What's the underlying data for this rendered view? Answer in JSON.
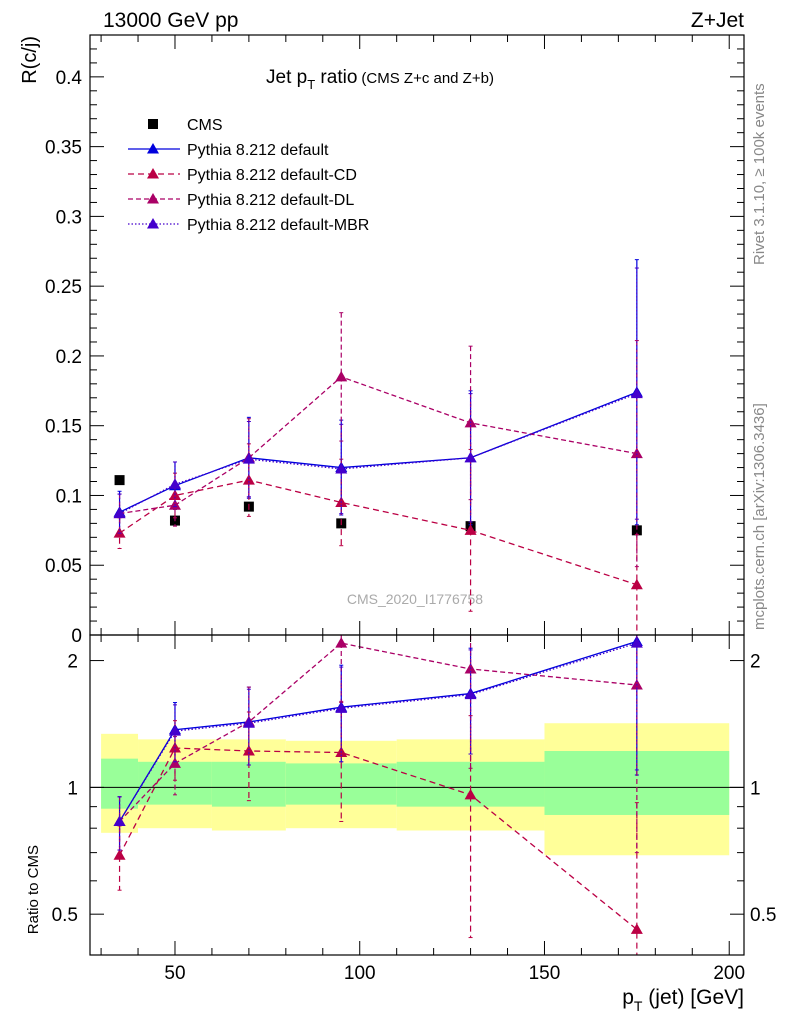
{
  "header": {
    "left": "13000 GeV pp",
    "right": "Z+Jet"
  },
  "side_labels": {
    "top": "Rivet 3.1.10, ≥ 100k events",
    "bottom": "mcplots.cern.ch [arXiv:1306.3436]"
  },
  "chart_data": {
    "type": "scatter",
    "title_main": "Jet p",
    "title_sub": "T",
    "title_rest": " ratio",
    "title_small": "(CMS  Z+c and Z+b)",
    "ylabel": "R(c/j)",
    "xlabel_main": "p",
    "xlabel_sub": "T",
    "xlabel_rest": " (jet) [GeV]",
    "ratio_ylabel": "Ratio to CMS",
    "watermark": "CMS_2020_I1776758",
    "xlim": [
      27,
      204
    ],
    "ylim": [
      0,
      0.43
    ],
    "ratio_ylim": [
      0.4,
      2.3
    ],
    "x_ticks": [
      "50",
      "100",
      "150",
      "200"
    ],
    "y_ticks": [
      "0",
      "0.05",
      "0.1",
      "0.15",
      "0.2",
      "0.25",
      "0.3",
      "0.35",
      "0.4"
    ],
    "ratio_ticks": [
      "0.5",
      "1",
      "2"
    ],
    "legend_position": "top-left",
    "cms": {
      "name": "CMS",
      "color": "#000000",
      "x": [
        35,
        50,
        70,
        95,
        130,
        175
      ],
      "y": [
        0.111,
        0.082,
        0.092,
        0.08,
        0.078,
        0.075
      ]
    },
    "bands": {
      "yellow": "#ffff99",
      "green": "#99ff99",
      "bins": [
        {
          "lo": 30,
          "hi": 40,
          "yl": 0.78,
          "yh": 1.34,
          "gl": 0.89,
          "gh": 1.17
        },
        {
          "lo": 40,
          "hi": 60,
          "yl": 0.8,
          "yh": 1.3,
          "gl": 0.91,
          "gh": 1.15
        },
        {
          "lo": 60,
          "hi": 80,
          "yl": 0.79,
          "yh": 1.3,
          "gl": 0.9,
          "gh": 1.15
        },
        {
          "lo": 80,
          "hi": 110,
          "yl": 0.8,
          "yh": 1.29,
          "gl": 0.91,
          "gh": 1.14
        },
        {
          "lo": 110,
          "hi": 150,
          "yl": 0.79,
          "yh": 1.3,
          "gl": 0.9,
          "gh": 1.15
        },
        {
          "lo": 150,
          "hi": 200,
          "yl": 0.69,
          "yh": 1.42,
          "gl": 0.86,
          "gh": 1.22
        }
      ]
    },
    "series": [
      {
        "name": "Pythia 8.212 default",
        "color": "#0000dd",
        "dash": "solid",
        "x": [
          35,
          50,
          70,
          95,
          130,
          175
        ],
        "y": [
          0.088,
          0.107,
          0.127,
          0.12,
          0.127,
          0.174
        ],
        "err": [
          0.015,
          0.017,
          0.029,
          0.034,
          0.048,
          0.095
        ],
        "ratio": [
          0.83,
          1.37,
          1.43,
          1.55,
          1.67,
          2.22
        ],
        "ratio_err": [
          0.12,
          0.22,
          0.3,
          0.4,
          0.47,
          1.15
        ]
      },
      {
        "name": "Pythia 8.212 default-CD",
        "color": "#bb0044",
        "dash": "6 4",
        "x": [
          35,
          50,
          70,
          95,
          130,
          175
        ],
        "y": [
          0.073,
          0.1,
          0.111,
          0.095,
          0.075,
          0.036
        ],
        "err": [
          0.011,
          0.016,
          0.026,
          0.031,
          0.058,
          0.036
        ],
        "ratio": [
          0.69,
          1.24,
          1.22,
          1.21,
          0.96,
          0.46
        ],
        "ratio_err": [
          0.12,
          0.2,
          0.29,
          0.38,
          0.52,
          0.46
        ]
      },
      {
        "name": "Pythia 8.212 default-DL",
        "color": "#aa0066",
        "dash": "5 3",
        "x": [
          35,
          50,
          70,
          95,
          130,
          175
        ],
        "y": [
          0.087,
          0.093,
          0.127,
          0.185,
          0.152,
          0.13
        ],
        "err": [
          0.014,
          0.015,
          0.028,
          0.046,
          0.055,
          0.081
        ],
        "ratio": [
          0.83,
          1.14,
          1.43,
          2.2,
          1.91,
          1.75
        ],
        "ratio_err": [
          0.12,
          0.18,
          0.3,
          0.6,
          0.8,
          1.05
        ]
      },
      {
        "name": "Pythia 8.212 default-MBR",
        "color": "#4400cc",
        "dash": "1.5 2",
        "x": [
          35,
          50,
          70,
          95,
          130,
          175
        ],
        "y": [
          0.087,
          0.108,
          0.126,
          0.119,
          0.127,
          0.173
        ],
        "err": [
          0.014,
          0.016,
          0.027,
          0.032,
          0.046,
          0.09
        ],
        "ratio": [
          0.83,
          1.36,
          1.42,
          1.54,
          1.66,
          2.2
        ],
        "ratio_err": [
          0.12,
          0.21,
          0.29,
          0.39,
          0.46,
          1.1
        ]
      }
    ]
  }
}
